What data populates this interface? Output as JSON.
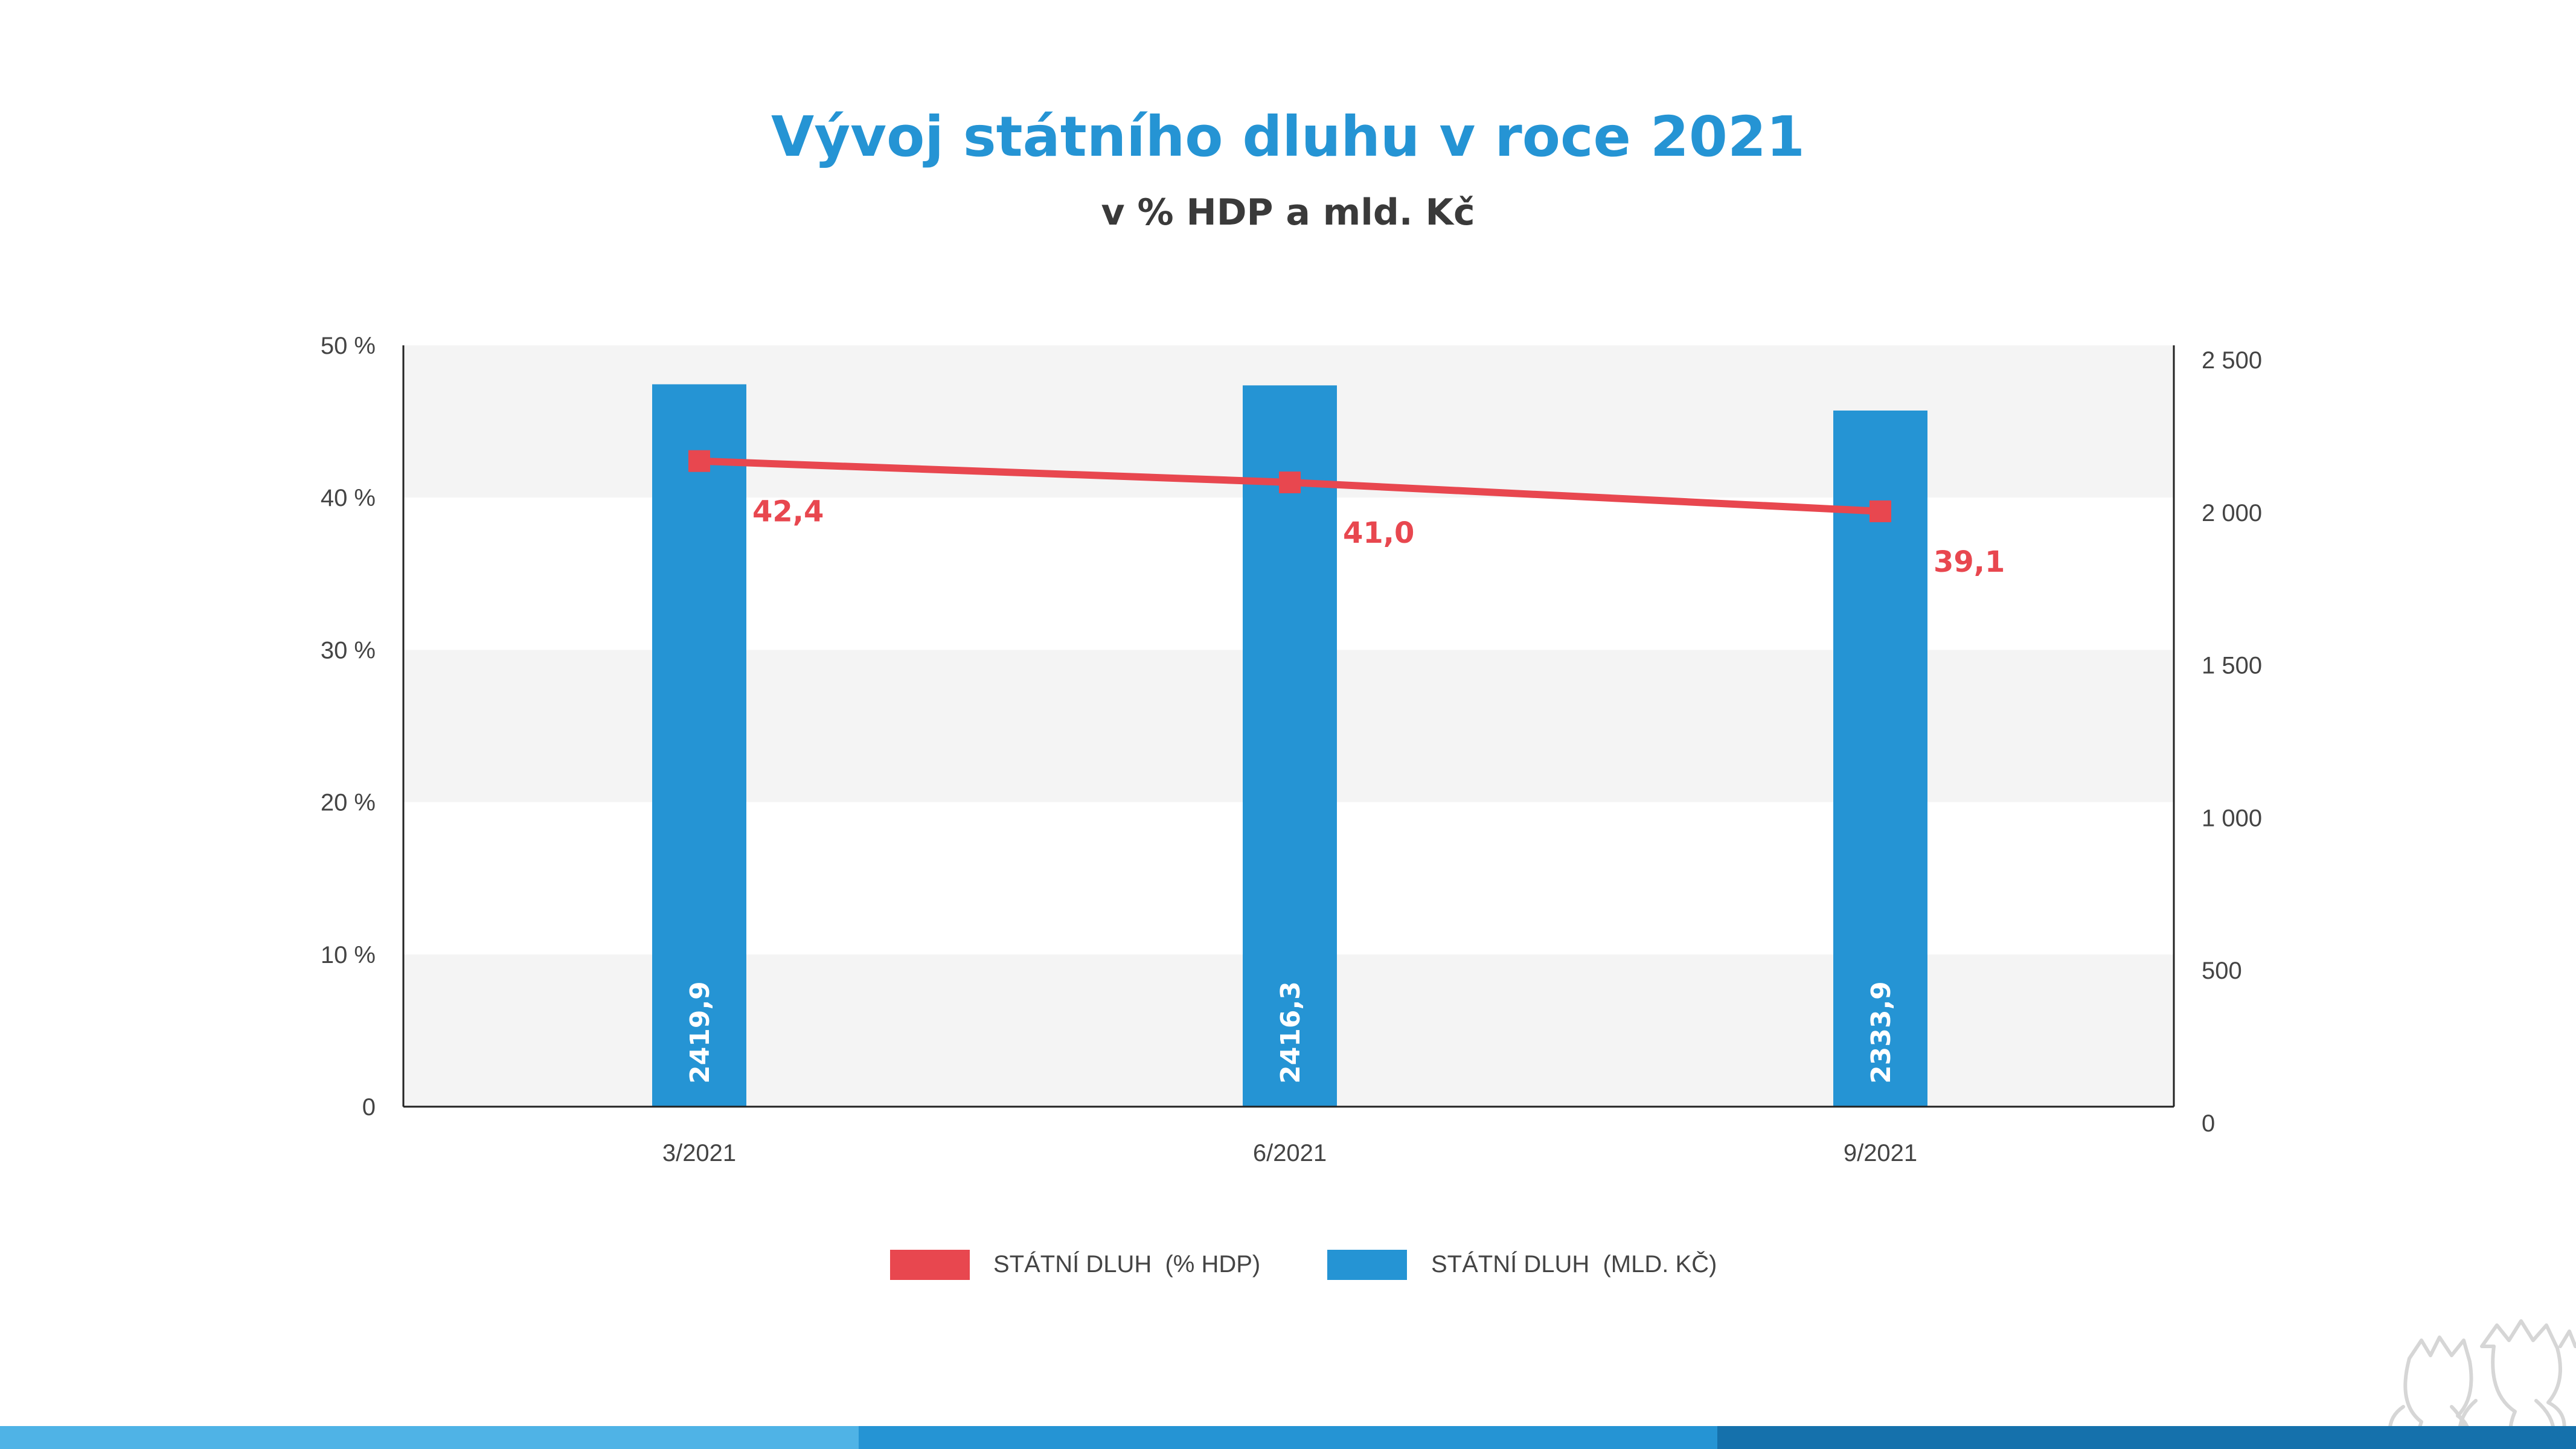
{
  "chart_data": {
    "type": "bar",
    "title": "Vývoj státního dluhu v roce 2021",
    "subtitle": "v % HDP a mld. Kč",
    "categories": [
      "3/2021",
      "6/2021",
      "9/2021"
    ],
    "y_left": {
      "ticks": [
        "0",
        "10 %",
        "20 %",
        "30 %",
        "40 %",
        "50 %"
      ],
      "min": 0,
      "max": 50
    },
    "y_right": {
      "ticks": [
        "0",
        "500",
        "1 000",
        "1 500",
        "2 000",
        "2 500"
      ],
      "min": 0,
      "max": 2500
    },
    "series": [
      {
        "name": "STÁTNÍ DLUH  (% HDP)",
        "type": "line",
        "axis": "left",
        "values": [
          42.4,
          41.0,
          39.1
        ],
        "labels": [
          "42,4",
          "41,0",
          "39,1"
        ],
        "color": "#e8474f"
      },
      {
        "name": "STÁTNÍ DLUH  (MLD. KČ)",
        "type": "bar",
        "axis": "right",
        "values": [
          2419.9,
          2416.3,
          2333.9
        ],
        "labels": [
          "2419,9",
          "2416,3",
          "2333,9"
        ],
        "color": "#2594d4"
      }
    ],
    "grid": "alternating horizontal bands",
    "legend": "bottom-center",
    "colors": {
      "title": "#2594d4",
      "subtitle": "#3a3a3a",
      "band": "#f4f4f4",
      "footer": [
        "#4fb3e6",
        "#2594d4",
        "#1571ac"
      ]
    }
  }
}
